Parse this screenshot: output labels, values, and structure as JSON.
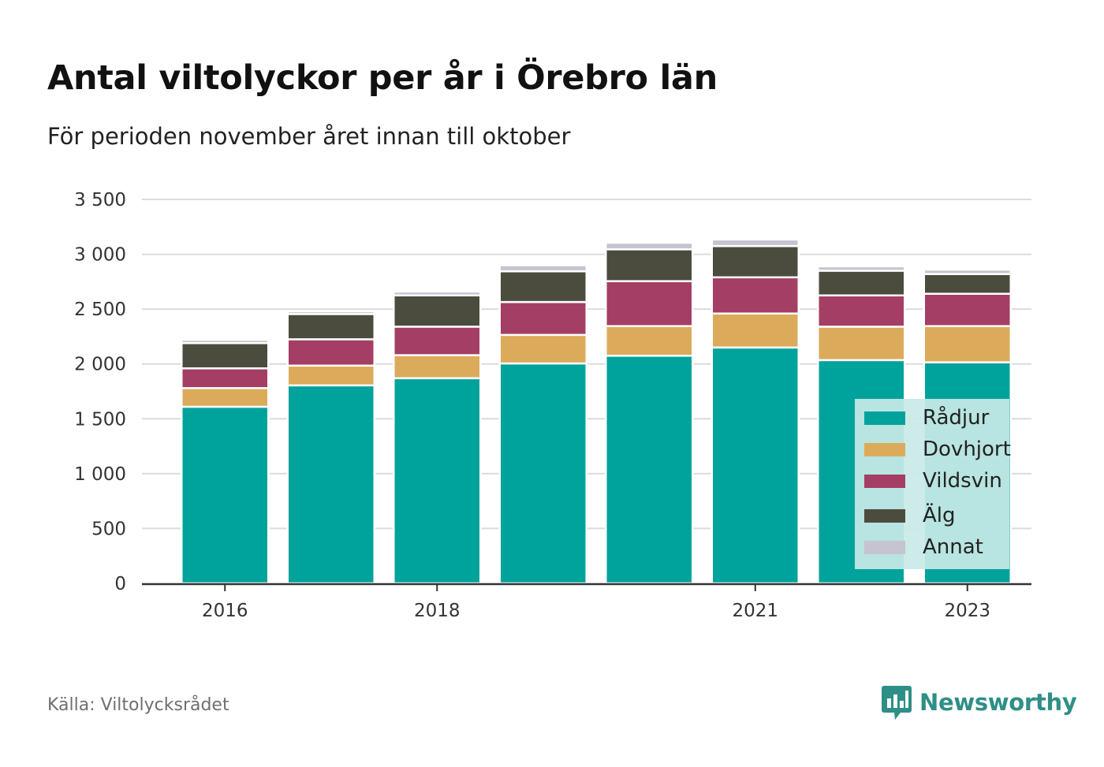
{
  "header": {
    "title": "Antal viltolyckor per år i Örebro län",
    "subtitle": "För perioden november året innan till oktober"
  },
  "footer": {
    "source": "Källa: Viltolycksrådet",
    "brand": "Newsworthy"
  },
  "colors": {
    "Rådjur": "#00a39b",
    "Dovhjort": "#dbab5b",
    "Vildsvin": "#a53e64",
    "Älg": "#4b4c3e",
    "Annat": "#c6c4d0",
    "brand": "#2e8f86"
  },
  "chart_data": {
    "type": "bar",
    "stacked": true,
    "title": "Antal viltolyckor per år i Örebro län",
    "subtitle": "För perioden november året innan till oktober",
    "categories": [
      "2016",
      "2017",
      "2018",
      "2019",
      "2020",
      "2021",
      "2022",
      "2023"
    ],
    "x_tick_labels": [
      "2016",
      "2018",
      "2021",
      "2023"
    ],
    "ylim": [
      0,
      3500
    ],
    "yticks": [
      0,
      500,
      1000,
      1500,
      2000,
      2500,
      3000,
      3500
    ],
    "ytick_labels": [
      "0",
      "500",
      "1 000",
      "1 500",
      "2 000",
      "2 500",
      "3 000",
      "3 500"
    ],
    "grid": true,
    "legend_position": "bottom-right",
    "series": [
      {
        "name": "Rådjur",
        "values": [
          1610,
          1805,
          1870,
          2005,
          2075,
          2150,
          2035,
          2015
        ]
      },
      {
        "name": "Dovhjort",
        "values": [
          170,
          180,
          210,
          260,
          270,
          310,
          305,
          330
        ]
      },
      {
        "name": "Vildsvin",
        "values": [
          180,
          240,
          260,
          300,
          410,
          330,
          285,
          295
        ]
      },
      {
        "name": "Älg",
        "values": [
          230,
          230,
          285,
          280,
          290,
          285,
          225,
          180
        ]
      },
      {
        "name": "Annat",
        "values": [
          30,
          25,
          35,
          55,
          60,
          60,
          40,
          40
        ]
      }
    ]
  }
}
